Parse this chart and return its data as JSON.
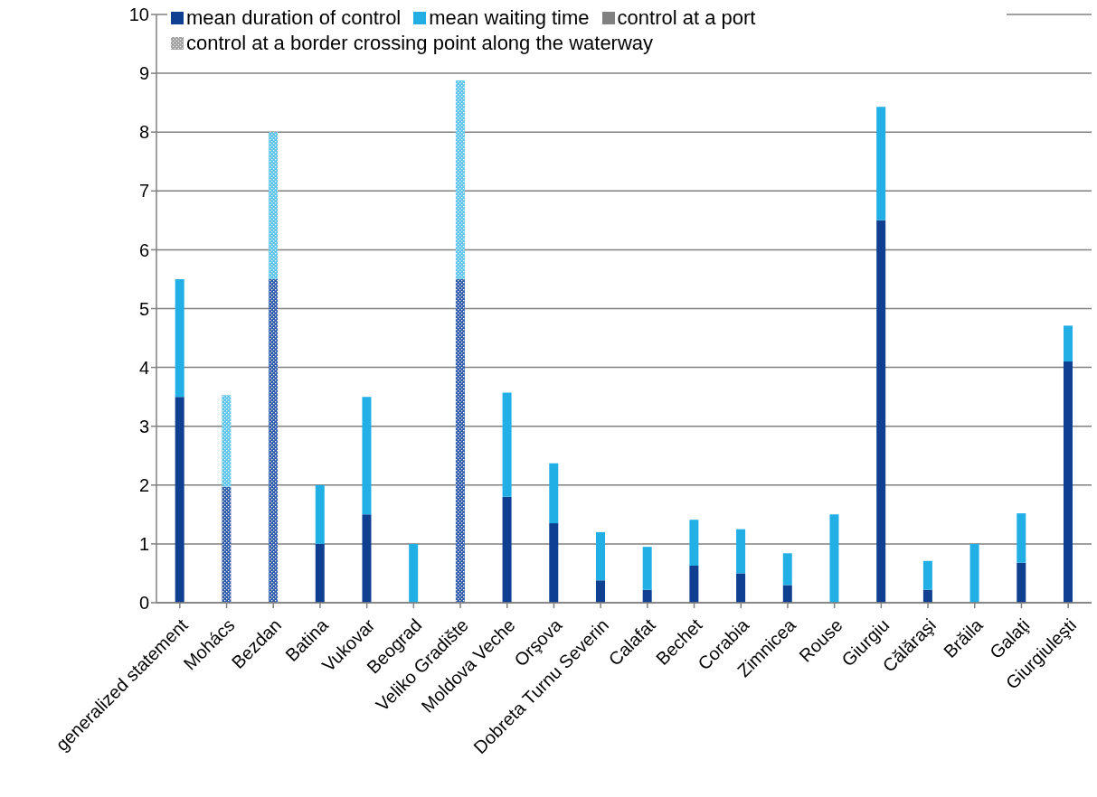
{
  "chart_data": {
    "type": "bar",
    "stacked": true,
    "categories": [
      "generalized statement",
      "Mohács",
      "Bezdan",
      "Batina",
      "Vukovar",
      "Beograd",
      "Veliko Gradište",
      "Moldova Veche",
      "Orşova",
      "Dobreta Turnu Severin",
      "Calafat",
      "Bechet",
      "Corabia",
      "Zimnicea",
      "Rouse",
      "Giurgiu",
      "Călăraşi",
      "Brăila",
      "Galaţi",
      "Giurgiuleşti"
    ],
    "series": [
      {
        "name": "mean duration of control",
        "color": "#0f3f91",
        "colors": [
          "#0f3f91",
          "#2c5aa8",
          "#2c5aa8",
          "#0f3f91",
          "#0f3f91",
          "#0f3f91",
          "#2c5aa8",
          "#0f3f91",
          "#0f3f91",
          "#0f3f91",
          "#0f3f91",
          "#0f3f91",
          "#0f3f91",
          "#0f3f91",
          "#0f3f91",
          "#0f3f91",
          "#0f3f91",
          "#0f3f91",
          "#0f3f91",
          "#0f3f91"
        ],
        "values": [
          3.5,
          1.97,
          5.5,
          1.0,
          1.5,
          null,
          5.5,
          1.8,
          1.35,
          0.38,
          0.22,
          0.63,
          0.5,
          0.3,
          null,
          6.5,
          0.22,
          null,
          0.68,
          4.1
        ]
      },
      {
        "name": "mean waiting time",
        "color": "#22afe6",
        "colors": [
          "#22afe6",
          "#5cc3ec",
          "#5cc3ec",
          "#22afe6",
          "#22afe6",
          "#22afe6",
          "#5cc3ec",
          "#22afe6",
          "#22afe6",
          "#22afe6",
          "#22afe6",
          "#22afe6",
          "#22afe6",
          "#22afe6",
          "#22afe6",
          "#22afe6",
          "#22afe6",
          "#22afe6",
          "#22afe6",
          "#22afe6"
        ],
        "values": [
          2.0,
          1.56,
          2.5,
          1.0,
          2.0,
          1.0,
          3.38,
          1.77,
          1.02,
          0.82,
          0.73,
          0.78,
          0.75,
          0.54,
          1.5,
          1.93,
          0.49,
          1.0,
          0.84,
          0.61
        ]
      },
      {
        "name": "control at a port",
        "color": "#808080",
        "values": [
          null,
          null,
          null,
          null,
          null,
          null,
          null,
          null,
          null,
          null,
          null,
          null,
          null,
          null,
          null,
          null,
          null,
          null,
          null,
          null
        ]
      },
      {
        "name": "control at a border crossing point along the waterway",
        "color": "#a6a6a6",
        "line_style": "dotted",
        "values": [
          null,
          null,
          null,
          null,
          null,
          null,
          null,
          null,
          null,
          null,
          null,
          null,
          null,
          null,
          null,
          null,
          null,
          null,
          null,
          null
        ]
      }
    ],
    "ylim": [
      0,
      10
    ],
    "yticks": [
      0,
      1,
      2,
      3,
      4,
      5,
      6,
      7,
      8,
      9,
      10
    ],
    "grid": "y",
    "legend": "top left"
  }
}
